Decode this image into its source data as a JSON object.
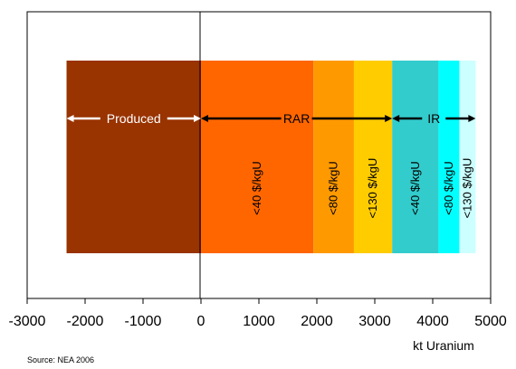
{
  "chart_data": {
    "type": "bar",
    "orientation": "horizontal-stacked",
    "xlabel": "kt Uranium",
    "xlim": [
      -3000,
      5000
    ],
    "xticks": [
      -3000,
      -2000,
      -1000,
      0,
      1000,
      2000,
      3000,
      4000,
      5000
    ],
    "xtick_labels": [
      "-3000",
      "-2000",
      "-1000",
      "0",
      "1000",
      "2000",
      "3000",
      "4000",
      "5000"
    ],
    "grid": false,
    "segments": [
      {
        "label": "",
        "start": -2320,
        "end": 0,
        "color": "#993300"
      },
      {
        "label": "<40 $/kgU",
        "start": 0,
        "end": 1940,
        "color": "#ff6600"
      },
      {
        "label": "<80 $/kgU",
        "start": 1940,
        "end": 2640,
        "color": "#ff9900"
      },
      {
        "label": "<130 $/kgU",
        "start": 2640,
        "end": 3300,
        "color": "#ffcc00"
      },
      {
        "label": "<40 $/kgU",
        "start": 3300,
        "end": 4100,
        "color": "#33cccc"
      },
      {
        "label": "<80 $/kgU",
        "start": 4100,
        "end": 4460,
        "color": "#00ffff"
      },
      {
        "label": "<130 $/kgU",
        "start": 4460,
        "end": 4740,
        "color": "#ccffff"
      }
    ],
    "arrows": [
      {
        "label": "Produced",
        "start": -2320,
        "end": 0,
        "color": "#ffffff",
        "text_color": "#ffffff"
      },
      {
        "label": "RAR",
        "start": 0,
        "end": 3300,
        "color": "#000000",
        "text_color": "#000000"
      },
      {
        "label": "IR",
        "start": 3300,
        "end": 4740,
        "color": "#000000",
        "text_color": "#000000"
      }
    ]
  },
  "source": "Source: NEA 2006"
}
